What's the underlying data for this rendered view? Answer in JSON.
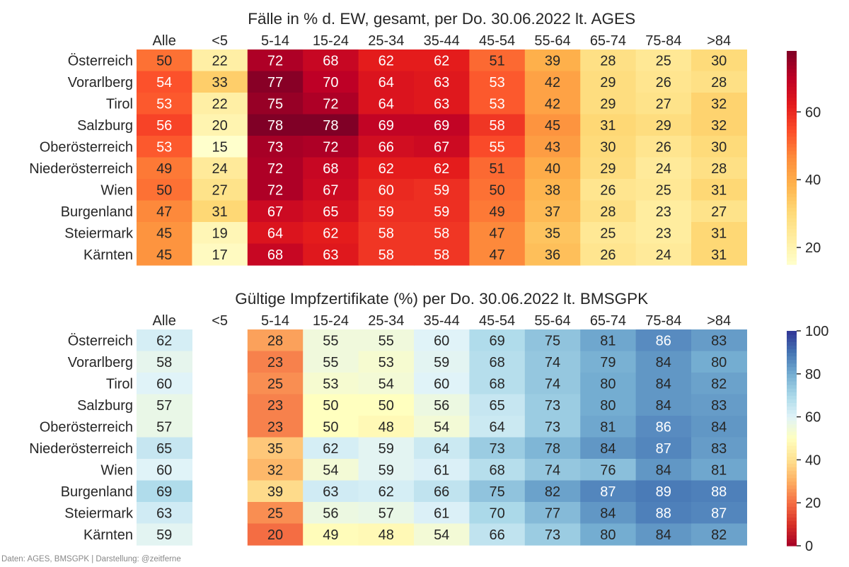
{
  "footer": "Daten: AGES, BMSGPK | Darstellung: @zeitferne",
  "chart_data": [
    {
      "type": "heatmap",
      "title": "Fälle in % d. EW, gesamt, per Do. 30.06.2022 lt. AGES",
      "colormap": "YlOrRd",
      "columns": [
        "Alle",
        "<5",
        "5-14",
        "15-24",
        "25-34",
        "35-44",
        "45-54",
        "55-64",
        "65-74",
        "75-84",
        ">84"
      ],
      "rows": [
        "Österreich",
        "Vorarlberg",
        "Tirol",
        "Salzburg",
        "Oberösterreich",
        "Niederösterreich",
        "Wien",
        "Burgenland",
        "Steiermark",
        "Kärnten"
      ],
      "values": [
        [
          50,
          22,
          72,
          68,
          62,
          62,
          51,
          39,
          28,
          25,
          30
        ],
        [
          54,
          33,
          77,
          70,
          64,
          63,
          53,
          42,
          29,
          26,
          28
        ],
        [
          53,
          22,
          75,
          72,
          64,
          63,
          53,
          42,
          29,
          27,
          32
        ],
        [
          56,
          20,
          78,
          78,
          69,
          69,
          58,
          45,
          31,
          29,
          32
        ],
        [
          53,
          15,
          73,
          72,
          66,
          67,
          55,
          43,
          30,
          26,
          30
        ],
        [
          49,
          24,
          72,
          68,
          62,
          62,
          51,
          40,
          29,
          24,
          28
        ],
        [
          50,
          27,
          72,
          67,
          60,
          59,
          50,
          38,
          26,
          25,
          31
        ],
        [
          47,
          31,
          67,
          65,
          59,
          59,
          49,
          37,
          28,
          23,
          27
        ],
        [
          45,
          19,
          64,
          62,
          58,
          58,
          47,
          35,
          25,
          23,
          31
        ],
        [
          45,
          17,
          68,
          63,
          58,
          58,
          47,
          36,
          26,
          24,
          31
        ]
      ],
      "vmin": 15,
      "vmax": 78,
      "colorbar_ticks": [
        20,
        40,
        60
      ]
    },
    {
      "type": "heatmap",
      "title": "Gültige Impfzertifikate (%) per Do. 30.06.2022 lt. BMSGPK",
      "colormap": "RdYlBu",
      "columns": [
        "Alle",
        "<5",
        "5-14",
        "15-24",
        "25-34",
        "35-44",
        "45-54",
        "55-64",
        "65-74",
        "75-84",
        ">84"
      ],
      "rows": [
        "Österreich",
        "Vorarlberg",
        "Tirol",
        "Salzburg",
        "Oberösterreich",
        "Niederösterreich",
        "Wien",
        "Burgenland",
        "Steiermark",
        "Kärnten"
      ],
      "values": [
        [
          62,
          null,
          28,
          55,
          55,
          60,
          69,
          75,
          81,
          86,
          83
        ],
        [
          58,
          null,
          23,
          55,
          53,
          59,
          68,
          74,
          79,
          84,
          80
        ],
        [
          60,
          null,
          25,
          53,
          54,
          60,
          68,
          74,
          80,
          84,
          82
        ],
        [
          57,
          null,
          23,
          50,
          50,
          56,
          65,
          73,
          80,
          84,
          83
        ],
        [
          57,
          null,
          23,
          50,
          48,
          54,
          64,
          73,
          81,
          86,
          84
        ],
        [
          65,
          null,
          35,
          62,
          59,
          64,
          73,
          78,
          84,
          87,
          83
        ],
        [
          60,
          null,
          32,
          54,
          59,
          61,
          68,
          74,
          76,
          84,
          81
        ],
        [
          69,
          null,
          39,
          63,
          62,
          66,
          75,
          82,
          87,
          89,
          88
        ],
        [
          63,
          null,
          25,
          56,
          57,
          61,
          70,
          77,
          84,
          88,
          87
        ],
        [
          59,
          null,
          20,
          49,
          48,
          54,
          66,
          73,
          80,
          84,
          82
        ]
      ],
      "vmin": 0,
      "vmax": 100,
      "colorbar_ticks": [
        0,
        20,
        40,
        60,
        80,
        100
      ]
    }
  ]
}
